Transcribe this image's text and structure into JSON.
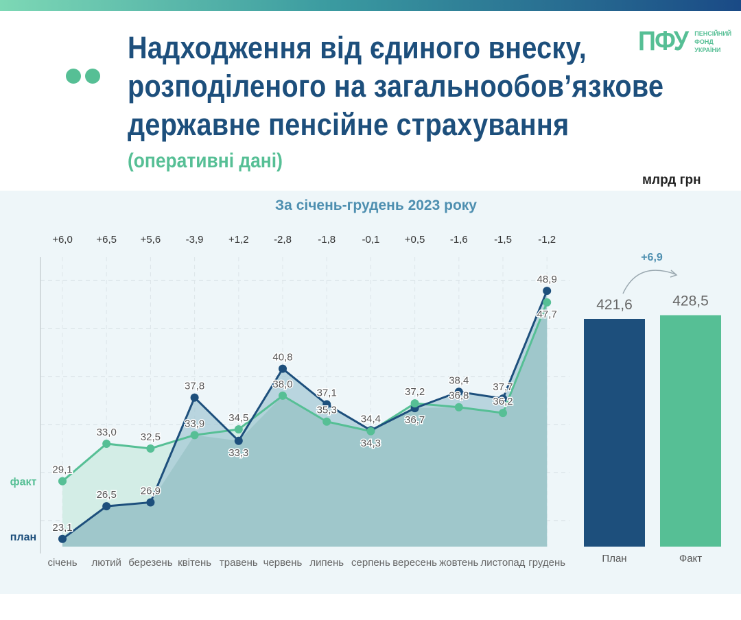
{
  "header": {
    "title_lines": [
      "Надходження від єдиного внеску,",
      "розподіленого на загальнообов’язкове",
      "державне пенсійне страхування"
    ],
    "subtitle": "(оперативні дані)",
    "logo": {
      "mark": "ПФУ",
      "text_lines": [
        "ПЕНСІЙНИЙ",
        "ФОНД",
        "УКРАЇНИ"
      ]
    },
    "unit": "млрд грн"
  },
  "colors": {
    "plan": "#1d4f7c",
    "fact": "#56bf95",
    "accent": "#4e8fb0"
  },
  "chart_data": [
    {
      "type": "line",
      "title": "За січень-грудень 2023 року",
      "categories": [
        "січень",
        "лютий",
        "березень",
        "квітень",
        "травень",
        "червень",
        "липень",
        "серпень",
        "вересень",
        "жовтень",
        "листопад",
        "грудень"
      ],
      "series": [
        {
          "name": "план",
          "values": [
            23.1,
            26.5,
            26.9,
            37.8,
            33.3,
            40.8,
            37.1,
            34.4,
            36.7,
            38.4,
            37.7,
            48.9
          ]
        },
        {
          "name": "факт",
          "values": [
            29.1,
            33.0,
            32.5,
            33.9,
            34.5,
            38.0,
            35.3,
            34.3,
            37.2,
            36.8,
            36.2,
            47.7
          ]
        }
      ],
      "differences": [
        "+6,0",
        "+6,5",
        "+5,6",
        "-3,9",
        "+1,2",
        "-2,8",
        "-1,8",
        "-0,1",
        "+0,5",
        "-1,6",
        "-1,5",
        "-1,2"
      ],
      "ylim": [
        22.3,
        52.4
      ],
      "grid": true
    },
    {
      "type": "bar",
      "categories": [
        "План",
        "Факт"
      ],
      "values": [
        421.6,
        428.5
      ],
      "value_labels": [
        "421,6",
        "428,5"
      ],
      "difference": "+6,9"
    }
  ]
}
